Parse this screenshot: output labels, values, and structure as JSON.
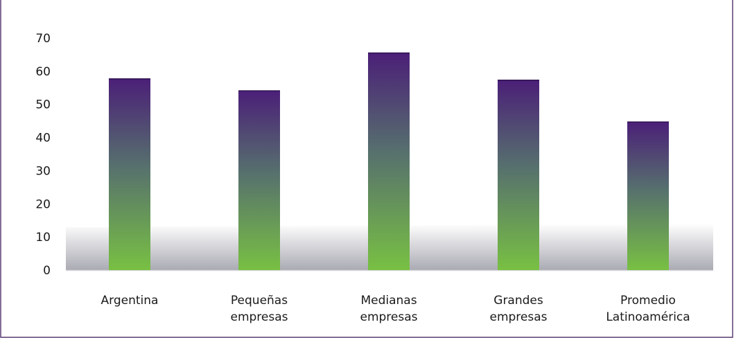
{
  "chart_data": {
    "type": "bar",
    "categories": [
      [
        "Argentina"
      ],
      [
        "Pequeñas",
        "empresas"
      ],
      [
        "Medianas",
        "empresas"
      ],
      [
        "Grandes",
        "empresas"
      ],
      [
        "Promedio",
        "Latinoamérica"
      ]
    ],
    "values": [
      57.8,
      54.2,
      65.6,
      57.4,
      44.8
    ],
    "y_ticks": [
      "0",
      "10",
      "20",
      "30",
      "40",
      "50",
      "60",
      "70"
    ],
    "ylim": [
      0,
      70
    ],
    "colors": {
      "bar_top": "#4b1f78",
      "bar_bottom": "#78c043",
      "frame": "#5a3f73",
      "floor": "#b6b6bd"
    }
  }
}
